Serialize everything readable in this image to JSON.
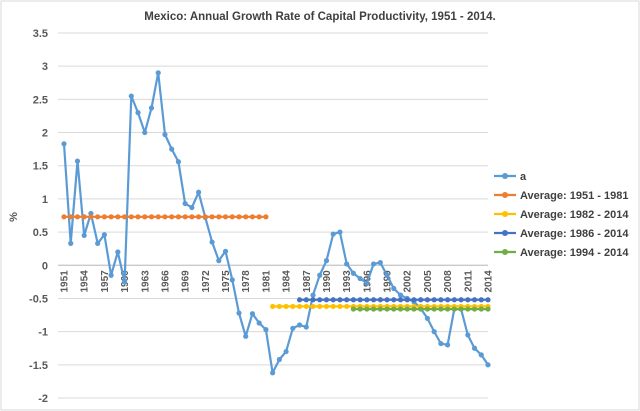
{
  "chart_data": {
    "type": "line",
    "title": "Mexico: Annual Growth Rate of Capital Productivity, 1951 - 2014.",
    "ylabel": "%",
    "xlabel": "",
    "ylim": [
      -2,
      3.5
    ],
    "yticks": [
      "3.5",
      "3",
      "2.5",
      "2",
      "1.5",
      "1",
      "0.5",
      "0",
      "-0.5",
      "-1",
      "-1.5",
      "-2"
    ],
    "ytick_values": [
      3.5,
      3,
      2.5,
      2,
      1.5,
      1,
      0.5,
      0,
      -0.5,
      -1,
      -1.5,
      -2
    ],
    "xticks": [
      "1951",
      "1954",
      "1957",
      "1960",
      "1963",
      "1966",
      "1969",
      "1972",
      "1975",
      "1978",
      "1981",
      "1984",
      "1987",
      "1990",
      "1993",
      "1996",
      "1999",
      "2002",
      "2005",
      "2008",
      "2011",
      "2014"
    ],
    "xtick_values": [
      1951,
      1954,
      1957,
      1960,
      1963,
      1966,
      1969,
      1972,
      1975,
      1978,
      1981,
      1984,
      1987,
      1990,
      1993,
      1996,
      1999,
      2002,
      2005,
      2008,
      2011,
      2014
    ],
    "grid": "horizontal",
    "legend_position": "right",
    "series": [
      {
        "name": "a",
        "color": "#5B9BD5",
        "x": [
          1951,
          1952,
          1953,
          1954,
          1955,
          1956,
          1957,
          1958,
          1959,
          1960,
          1961,
          1962,
          1963,
          1964,
          1965,
          1966,
          1967,
          1968,
          1969,
          1970,
          1971,
          1972,
          1973,
          1974,
          1975,
          1976,
          1977,
          1978,
          1979,
          1980,
          1981,
          1982,
          1983,
          1984,
          1985,
          1986,
          1987,
          1988,
          1989,
          1990,
          1991,
          1992,
          1993,
          1994,
          1995,
          1996,
          1997,
          1998,
          1999,
          2000,
          2001,
          2002,
          2003,
          2004,
          2005,
          2006,
          2007,
          2008,
          2009,
          2010,
          2011,
          2012,
          2013,
          2014
        ],
        "values": [
          1.83,
          0.33,
          1.57,
          0.45,
          0.78,
          0.33,
          0.46,
          -0.15,
          0.2,
          -0.25,
          2.55,
          2.3,
          2.0,
          2.37,
          2.9,
          1.97,
          1.75,
          1.56,
          0.93,
          0.87,
          1.1,
          0.72,
          0.35,
          0.07,
          0.21,
          -0.22,
          -0.72,
          -1.07,
          -0.73,
          -0.87,
          -0.97,
          -1.62,
          -1.42,
          -1.3,
          -0.95,
          -0.9,
          -0.93,
          -0.45,
          -0.15,
          0.07,
          0.47,
          0.5,
          0.02,
          -0.12,
          -0.2,
          -0.27,
          0.02,
          0.04,
          -0.15,
          -0.35,
          -0.45,
          -0.5,
          -0.55,
          -0.65,
          -0.8,
          -1.0,
          -1.18,
          -1.2,
          -0.66,
          -0.66,
          -1.05,
          -1.25,
          -1.35,
          -1.5
        ]
      },
      {
        "name": "Average: 1951 - 1981",
        "color": "#ED7D31",
        "x_start": 1951,
        "x_end": 1981,
        "value": 0.73
      },
      {
        "name": "Average: 1982 - 2014",
        "color": "#FFC000",
        "x_start": 1982,
        "x_end": 2014,
        "value": -0.62
      },
      {
        "name": "Average: 1986 - 2014",
        "color": "#4472C4",
        "x_start": 1986,
        "x_end": 2014,
        "value": -0.52
      },
      {
        "name": "Average: 1994 - 2014",
        "color": "#70AD47",
        "x_start": 1994,
        "x_end": 2014,
        "value": -0.66
      }
    ]
  }
}
